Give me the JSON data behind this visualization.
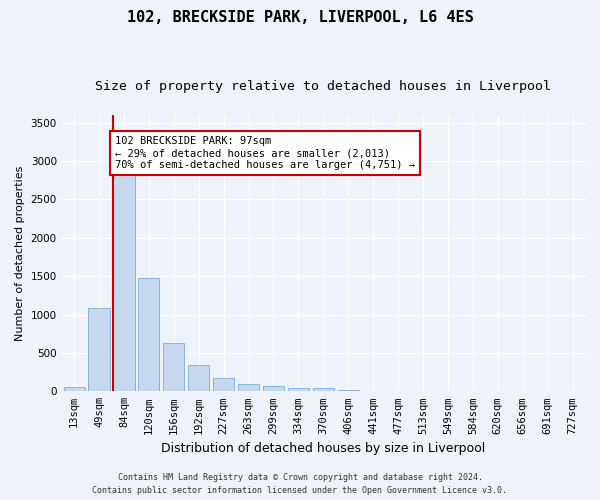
{
  "title": "102, BRECKSIDE PARK, LIVERPOOL, L6 4ES",
  "subtitle": "Size of property relative to detached houses in Liverpool",
  "xlabel": "Distribution of detached houses by size in Liverpool",
  "ylabel": "Number of detached properties",
  "categories": [
    "13sqm",
    "49sqm",
    "84sqm",
    "120sqm",
    "156sqm",
    "192sqm",
    "227sqm",
    "263sqm",
    "299sqm",
    "334sqm",
    "370sqm",
    "406sqm",
    "441sqm",
    "477sqm",
    "513sqm",
    "549sqm",
    "584sqm",
    "620sqm",
    "656sqm",
    "691sqm",
    "727sqm"
  ],
  "values": [
    50,
    1080,
    2880,
    1480,
    630,
    340,
    170,
    95,
    65,
    45,
    40,
    15,
    8,
    4,
    3,
    2,
    2,
    2,
    2,
    1,
    1
  ],
  "bar_color": "#c5d8f0",
  "bar_edge_color": "#7aafd4",
  "ylim": [
    0,
    3600
  ],
  "yticks": [
    0,
    500,
    1000,
    1500,
    2000,
    2500,
    3000,
    3500
  ],
  "property_line_color": "#cc0000",
  "property_line_x": 1.575,
  "annotation_text": "102 BRECKSIDE PARK: 97sqm\n← 29% of detached houses are smaller (2,013)\n70% of semi-detached houses are larger (4,751) →",
  "annotation_box_facecolor": "#ffffff",
  "annotation_box_edgecolor": "#cc0000",
  "footer_line1": "Contains HM Land Registry data © Crown copyright and database right 2024.",
  "footer_line2": "Contains public sector information licensed under the Open Government Licence v3.0.",
  "background_color": "#eef2fb",
  "grid_color": "#ffffff",
  "title_fontsize": 11,
  "subtitle_fontsize": 9.5,
  "xlabel_fontsize": 9,
  "ylabel_fontsize": 8,
  "tick_fontsize": 7.5,
  "annotation_fontsize": 7.5,
  "footer_fontsize": 6
}
